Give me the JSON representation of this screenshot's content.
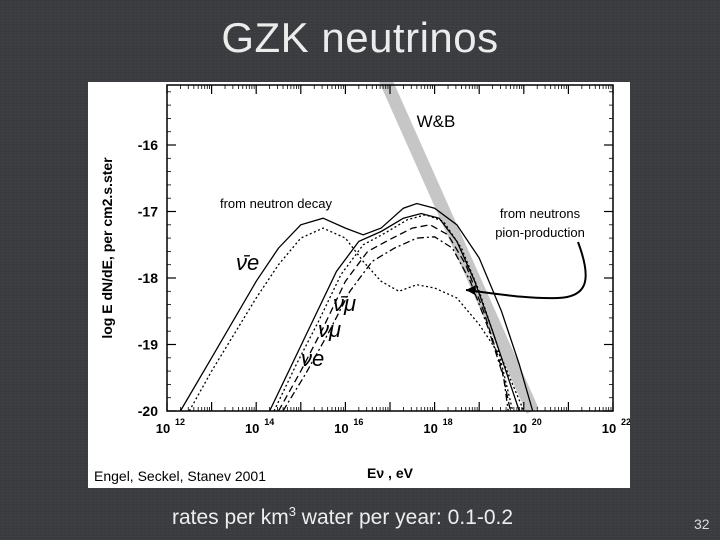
{
  "slide": {
    "title": "GZK neutrinos",
    "bottom_prefix": "rates per km",
    "bottom_exp": "3",
    "bottom_suffix": " water per year: 0.1-0.2",
    "page_number": "32"
  },
  "chart_data": {
    "type": "line",
    "xlabel": "Eν , eV",
    "ylabel": "log E dN/dE, per cm2.s.ster",
    "xscale": "log",
    "xlim": [
      12,
      22
    ],
    "ylim": [
      -20,
      -15
    ],
    "xticks": [
      {
        "v": 12,
        "label": "10",
        "exp": "12"
      },
      {
        "v": 14,
        "label": "10",
        "exp": "14"
      },
      {
        "v": 16,
        "label": "10",
        "exp": "16"
      },
      {
        "v": 18,
        "label": "10",
        "exp": "18"
      },
      {
        "v": 20,
        "label": "10",
        "exp": "20"
      },
      {
        "v": 22,
        "label": "10",
        "exp": "22"
      }
    ],
    "yticks": [
      -16,
      -17,
      -18,
      -19,
      -20
    ],
    "credit": "Engel, Seckel, Stanev 2001",
    "annotations": {
      "wb": "W&B",
      "neutron_decay": "from neutron decay",
      "pion_line1": "from neutrons",
      "pion_line2": "pion-production",
      "nu_e_bar": "ν̄e",
      "nu_mu_bar": "ν̄μ",
      "nu_mu": "νμ",
      "nu_e": "νe"
    },
    "series": [
      {
        "style": "solid",
        "points": [
          [
            12.3,
            -20
          ],
          [
            13,
            -19.2
          ],
          [
            14,
            -18.05
          ],
          [
            14.5,
            -17.55
          ],
          [
            15,
            -17.2
          ],
          [
            15.5,
            -17.1
          ],
          [
            16,
            -17.25
          ],
          [
            16.4,
            -17.35
          ],
          [
            16.8,
            -17.25
          ],
          [
            17.3,
            -16.95
          ],
          [
            17.6,
            -16.88
          ],
          [
            18,
            -16.95
          ],
          [
            18.5,
            -17.2
          ],
          [
            19,
            -17.7
          ],
          [
            19.5,
            -18.5
          ],
          [
            19.9,
            -19.3
          ],
          [
            20.2,
            -20
          ]
        ]
      },
      {
        "style": "dotted",
        "points": [
          [
            12.5,
            -20
          ],
          [
            13,
            -19.4
          ],
          [
            14,
            -18.3
          ],
          [
            14.5,
            -17.8
          ],
          [
            15,
            -17.4
          ],
          [
            15.5,
            -17.25
          ],
          [
            16,
            -17.4
          ],
          [
            16.4,
            -17.75
          ],
          [
            16.8,
            -18.05
          ],
          [
            17.2,
            -18.2
          ],
          [
            17.6,
            -18.1
          ],
          [
            18,
            -18.15
          ],
          [
            18.5,
            -18.3
          ],
          [
            19,
            -18.7
          ],
          [
            19.5,
            -19.2
          ],
          [
            20,
            -20
          ]
        ]
      },
      {
        "style": "solid",
        "points": [
          [
            14.3,
            -20
          ],
          [
            14.8,
            -19.3
          ],
          [
            15.3,
            -18.6
          ],
          [
            15.8,
            -17.9
          ],
          [
            16.3,
            -17.45
          ],
          [
            16.8,
            -17.3
          ],
          [
            17.3,
            -17.1
          ],
          [
            17.7,
            -17.03
          ],
          [
            18.1,
            -17.1
          ],
          [
            18.5,
            -17.45
          ],
          [
            18.9,
            -18.05
          ],
          [
            19.3,
            -18.8
          ],
          [
            19.7,
            -19.6
          ],
          [
            19.9,
            -20
          ]
        ]
      },
      {
        "style": "dotted",
        "points": [
          [
            14.4,
            -20
          ],
          [
            14.9,
            -19.3
          ],
          [
            15.4,
            -18.65
          ],
          [
            15.9,
            -17.95
          ],
          [
            16.4,
            -17.5
          ],
          [
            16.9,
            -17.32
          ],
          [
            17.4,
            -17.12
          ],
          [
            17.8,
            -17.05
          ],
          [
            18.2,
            -17.15
          ],
          [
            18.6,
            -17.55
          ],
          [
            19,
            -18.2
          ],
          [
            19.4,
            -19
          ],
          [
            19.75,
            -20
          ]
        ]
      },
      {
        "style": "dashed",
        "points": [
          [
            14.5,
            -20
          ],
          [
            15,
            -19.4
          ],
          [
            15.5,
            -18.75
          ],
          [
            16,
            -18.05
          ],
          [
            16.5,
            -17.6
          ],
          [
            17,
            -17.42
          ],
          [
            17.5,
            -17.25
          ],
          [
            17.9,
            -17.2
          ],
          [
            18.3,
            -17.35
          ],
          [
            18.7,
            -17.8
          ],
          [
            19.1,
            -18.5
          ],
          [
            19.5,
            -19.35
          ],
          [
            19.7,
            -20
          ]
        ]
      },
      {
        "style": "dashdot",
        "points": [
          [
            14.6,
            -20
          ],
          [
            15.1,
            -19.45
          ],
          [
            15.6,
            -18.85
          ],
          [
            16.1,
            -18.2
          ],
          [
            16.6,
            -17.75
          ],
          [
            17.1,
            -17.55
          ],
          [
            17.6,
            -17.4
          ],
          [
            18,
            -17.38
          ],
          [
            18.4,
            -17.55
          ],
          [
            18.8,
            -18.05
          ],
          [
            19.2,
            -18.75
          ],
          [
            19.55,
            -19.5
          ],
          [
            19.65,
            -20
          ]
        ]
      }
    ],
    "wb_band": [
      [
        16.75,
        -14.8
      ],
      [
        20.2,
        -20
      ]
    ]
  }
}
